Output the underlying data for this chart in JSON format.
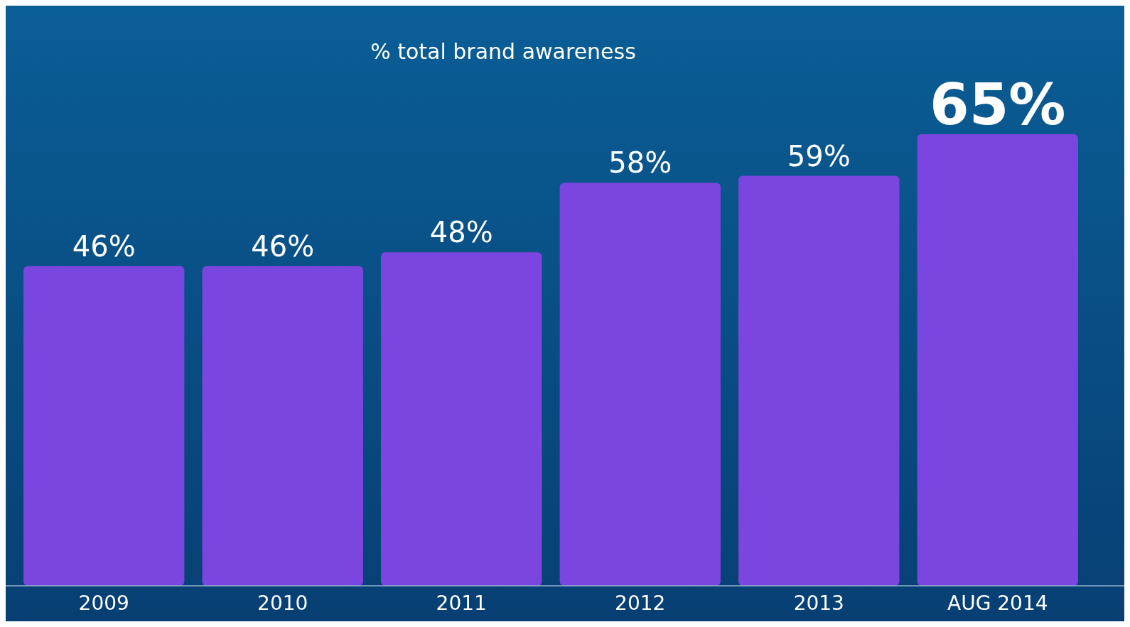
{
  "chart_data": {
    "type": "bar",
    "title": "% total brand awareness",
    "categories": [
      "2009",
      "2010",
      "2011",
      "2012",
      "2013",
      "AUG 2014"
    ],
    "values": [
      46,
      46,
      48,
      58,
      59,
      65
    ],
    "value_labels": [
      "46%",
      "46%",
      "48%",
      "58%",
      "59%",
      "65%"
    ],
    "color": "#7b45e0",
    "tick_labels": "x"
  }
}
